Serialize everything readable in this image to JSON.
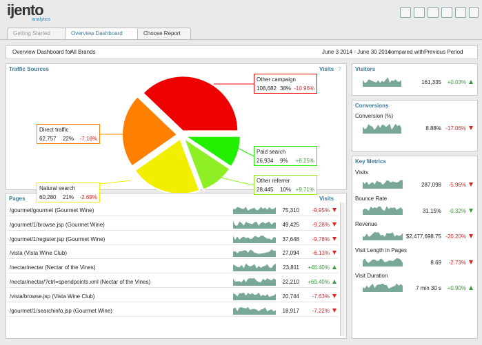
{
  "header": {
    "logo": "ijento",
    "logo_sub": "analytics"
  },
  "tabs": [
    "Getting Started",
    "Overview Dashboard",
    "Choose Report"
  ],
  "filter": {
    "label": "Overview Dashboard for",
    "brand": "All Brands",
    "date_range": "June 3 2014 - June 30 2014",
    "compared_label": "compared with",
    "compared": "Previous Period"
  },
  "traffic_sources": {
    "title": "Traffic Sources",
    "column": "Visits",
    "help": "?",
    "items": [
      {
        "name": "Paid search",
        "value": 26934,
        "value_label": "26,934",
        "share": "9%",
        "change": "+8.25%",
        "color": "#22ee00",
        "change_color": "#3a9a3a"
      },
      {
        "name": "Other referrer",
        "value": 28445,
        "value_label": "28,445",
        "share": "10%",
        "change": "+9.71%",
        "color": "#8ef024",
        "change_color": "#3a9a3a"
      },
      {
        "name": "Natural search",
        "value": 60280,
        "value_label": "60,280",
        "share": "21%",
        "change": "-2.69%",
        "color": "#f2ee00",
        "change_color": "#dd2222"
      },
      {
        "name": "Direct traffic",
        "value": 62757,
        "value_label": "62,757",
        "share": "22%",
        "change": "-7.16%",
        "color": "#ff8000",
        "change_color": "#dd2222"
      },
      {
        "name": "Other campaign",
        "value": 108682,
        "value_label": "108,682",
        "share": "38%",
        "change": "-10.96%",
        "color": "#ee0000",
        "change_color": "#dd2222"
      }
    ]
  },
  "pages": {
    "title": "Pages",
    "column": "Visits",
    "rows": [
      {
        "path": "/gourmet/gourmet (Gourmet Wine)",
        "visits": "75,310",
        "change": "-9.95%",
        "change_color": "#dd2222"
      },
      {
        "path": "/gourmet/1/browse.jsp (Gourmet Wine)",
        "visits": "49,425",
        "change": "-9.28%",
        "change_color": "#dd2222"
      },
      {
        "path": "/gourmet/1/register.jsp (Gourmet Wine)",
        "visits": "37,648",
        "change": "-9.78%",
        "change_color": "#dd2222"
      },
      {
        "path": "/vista (Vista Wine Club)",
        "visits": "27,094",
        "change": "-6.13%",
        "change_color": "#dd2222"
      },
      {
        "path": "/nectar/nectar (Nectar of the Vines)",
        "visits": "23,811",
        "change": "+46.40%",
        "change_color": "#3a9a3a"
      },
      {
        "path": "/nectar/nectar/?ctrl=spendpoints.xml (Nectar of the Vines)",
        "visits": "22,210",
        "change": "+69.40%",
        "change_color": "#3a9a3a"
      },
      {
        "path": "/vista/browse.jsp (Vista Wine Club)",
        "visits": "20,744",
        "change": "-7.63%",
        "change_color": "#dd2222"
      },
      {
        "path": "/gourmet/1/searchinfo.jsp (Gourmet Wine)",
        "visits": "18,917",
        "change": "-7.22%",
        "change_color": "#dd2222"
      }
    ]
  },
  "visitors": {
    "title": "Visitors",
    "value": "161,335",
    "change": "+0.03%",
    "change_color": "#3a9a3a"
  },
  "conversions": {
    "title": "Conversions",
    "metric": "Conversion (%)",
    "value": "8.88%",
    "change": "-17.06%",
    "change_color": "#dd2222"
  },
  "key_metrics": {
    "title": "Key Metrics",
    "items": [
      {
        "name": "Visits",
        "value": "287,098",
        "change": "-5.96%",
        "change_color": "#dd2222"
      },
      {
        "name": "Bounce Rate",
        "value": "31.15%",
        "change": "-0.32%",
        "change_color": "#3a9a3a"
      },
      {
        "name": "Revenue",
        "value": "$2,477,698.75",
        "change": "-20.20%",
        "change_color": "#dd2222"
      },
      {
        "name": "Visit Length in Pages",
        "value": "8.69",
        "change": "-2.73%",
        "change_color": "#dd2222"
      },
      {
        "name": "Visit Duration",
        "value": "7 min 30 s",
        "change": "+0.90%",
        "change_color": "#3a9a3a"
      }
    ]
  }
}
